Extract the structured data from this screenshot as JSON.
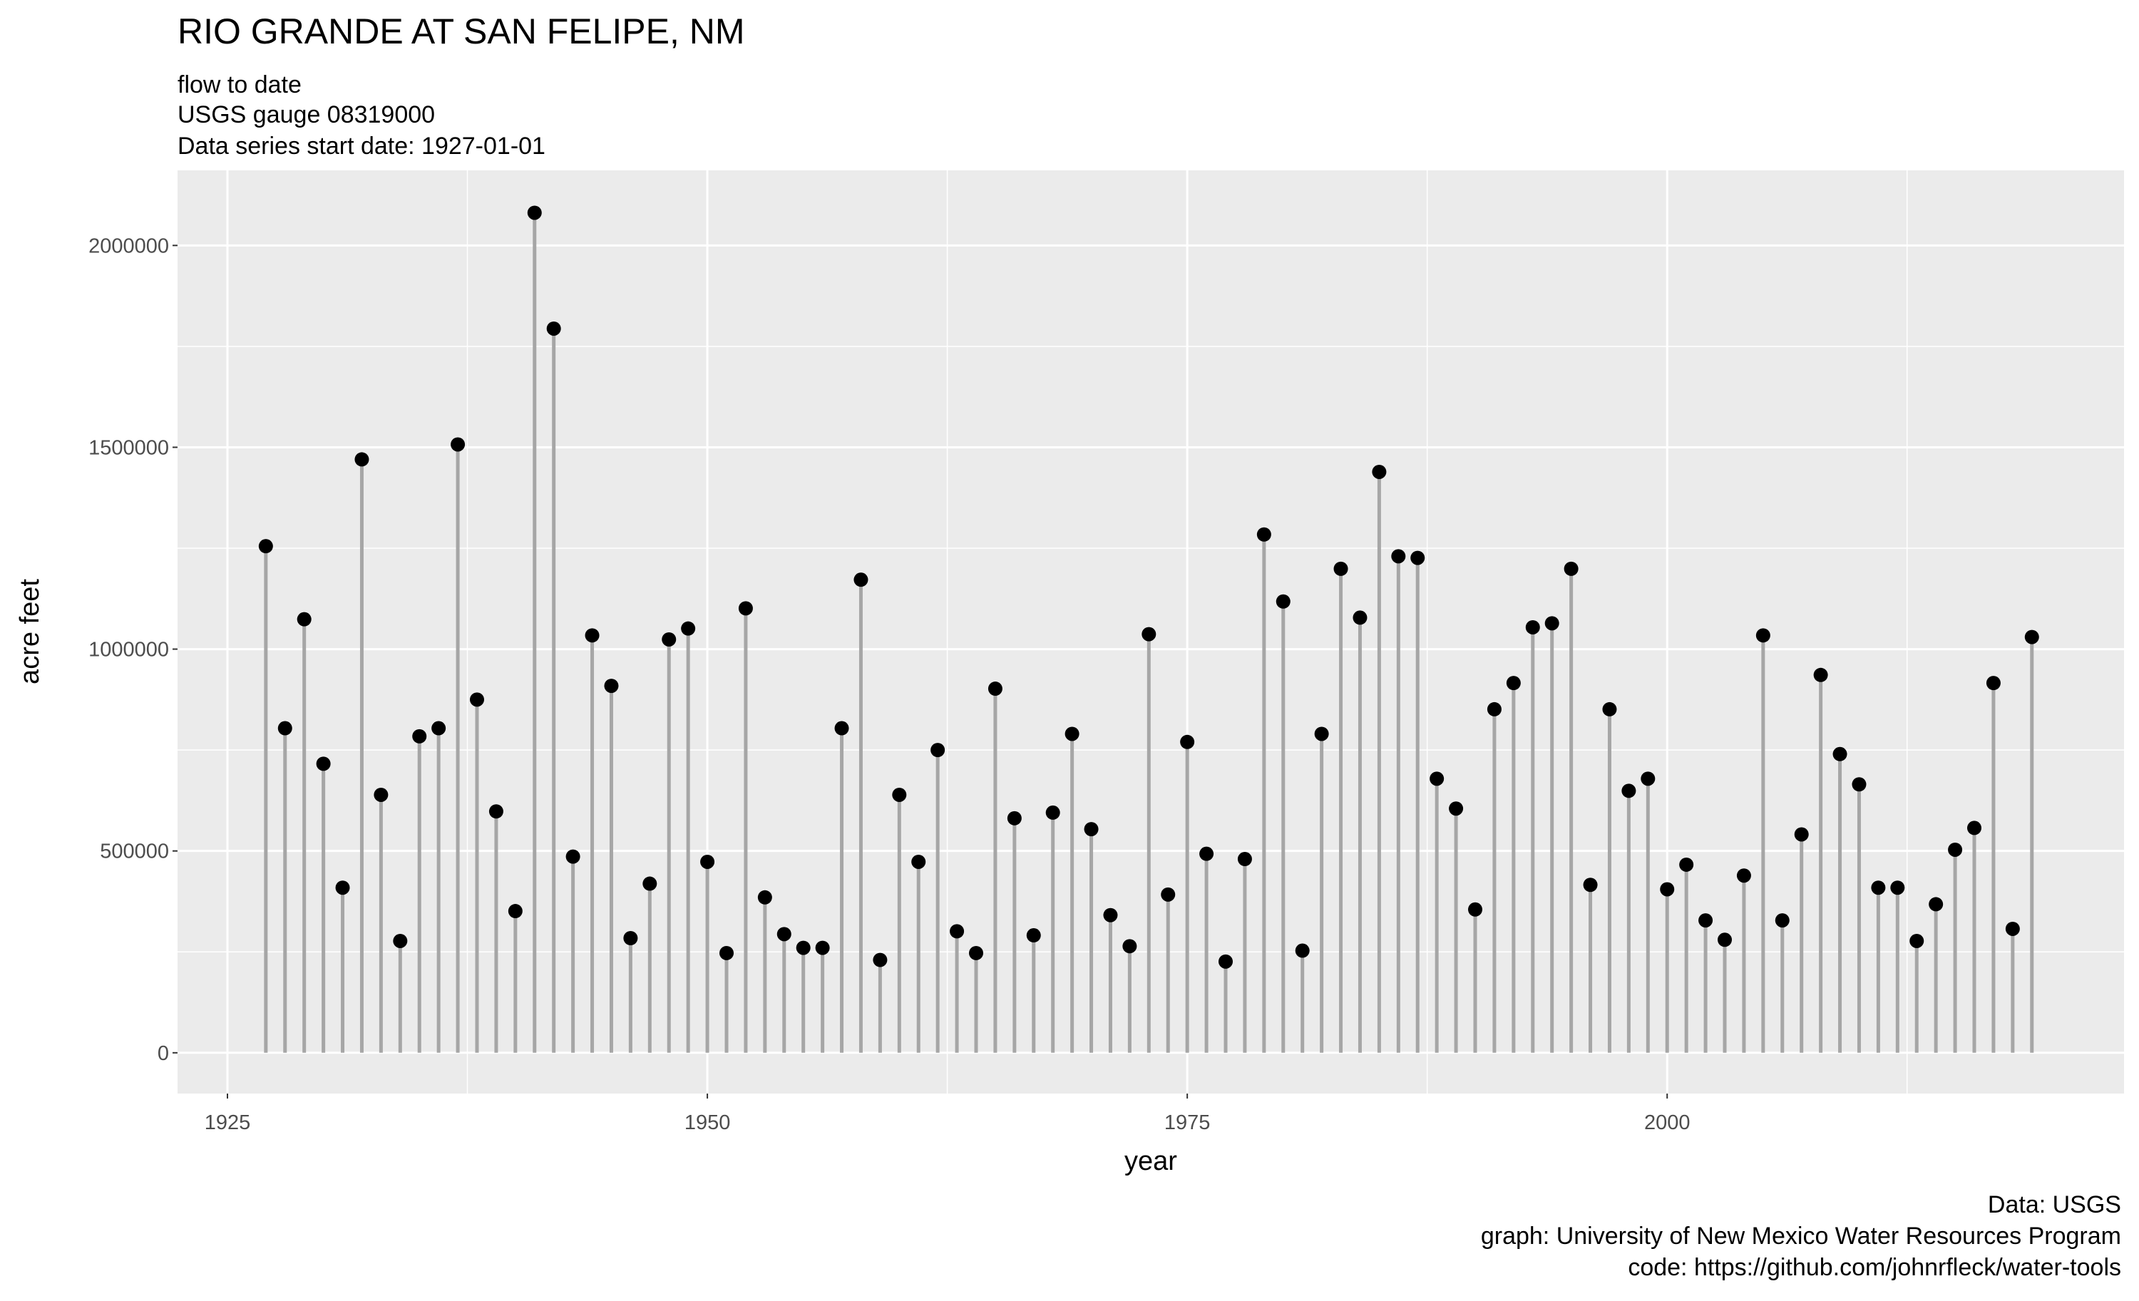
{
  "chart_data": {
    "type": "lollipop",
    "title": "RIO GRANDE AT SAN FELIPE, NM",
    "subtitle": [
      "flow to date",
      "USGS gauge 08319000",
      "Data series start date:  1927-01-01"
    ],
    "x_label": "year",
    "y_label": "acre feet",
    "caption": [
      "Data: USGS",
      "graph: University of New Mexico Water Resources Program",
      "code: https://github.com/johnrfleck/water-tools"
    ],
    "x": [
      1927,
      1928,
      1929,
      1930,
      1931,
      1932,
      1933,
      1934,
      1935,
      1936,
      1937,
      1938,
      1939,
      1940,
      1941,
      1942,
      1943,
      1944,
      1945,
      1946,
      1947,
      1948,
      1949,
      1950,
      1951,
      1952,
      1953,
      1954,
      1955,
      1956,
      1957,
      1958,
      1959,
      1960,
      1961,
      1962,
      1963,
      1964,
      1965,
      1966,
      1967,
      1968,
      1969,
      1970,
      1971,
      1972,
      1973,
      1974,
      1975,
      1976,
      1977,
      1978,
      1979,
      1980,
      1981,
      1982,
      1983,
      1984,
      1985,
      1986,
      1987,
      1988,
      1989,
      1990,
      1991,
      1992,
      1993,
      1994,
      1995,
      1996,
      1997,
      1998,
      1999,
      2000,
      2001,
      2002,
      2003,
      2004,
      2005,
      2006,
      2007,
      2008,
      2009,
      2010,
      2011,
      2012,
      2013,
      2014,
      2015,
      2016,
      2017,
      2018,
      2019
    ],
    "values": [
      1255000,
      804000,
      1074000,
      716000,
      409000,
      1470000,
      639000,
      277000,
      784000,
      804000,
      1507000,
      875000,
      598000,
      351000,
      2081000,
      1794000,
      486000,
      1034000,
      909000,
      284000,
      419000,
      1024000,
      1051000,
      473000,
      247000,
      1101000,
      385000,
      294000,
      260000,
      260000,
      804000,
      1172000,
      230000,
      639000,
      473000,
      750000,
      301000,
      247000,
      902000,
      581000,
      291000,
      595000,
      790000,
      554000,
      341000,
      264000,
      1037000,
      392000,
      770000,
      493000,
      226000,
      480000,
      1284000,
      1118000,
      253000,
      790000,
      1199000,
      1078000,
      1439000,
      1230000,
      1226000,
      679000,
      605000,
      355000,
      851000,
      916000,
      1054000,
      1064000,
      1199000,
      416000,
      851000,
      649000,
      679000,
      405000,
      466000,
      328000,
      280000,
      439000,
      1034000,
      328000,
      541000,
      936000,
      740000,
      665000,
      409000,
      409000,
      277000,
      368000,
      503000,
      557000,
      916000,
      307000,
      1030000
    ],
    "stem_color": "#a6a6a6",
    "point_color": "#000000",
    "xlim": [
      1922.4,
      2023.8
    ],
    "ylim": [
      -101000,
      2186000
    ],
    "xticks": [
      1925,
      1950,
      1975,
      2000
    ],
    "yticks": [
      0,
      500000,
      1000000,
      1500000,
      2000000
    ],
    "grid": true
  }
}
